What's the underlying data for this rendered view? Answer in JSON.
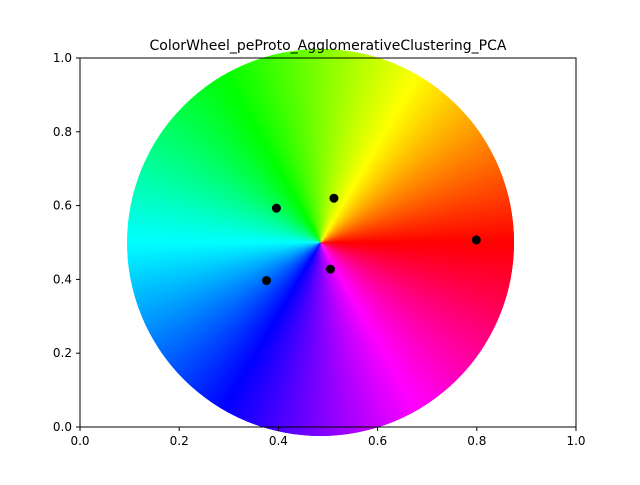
{
  "chart_data": {
    "type": "scatter",
    "title": "ColorWheel_peProto_AgglomerativeClustering_PCA",
    "xlabel": "",
    "ylabel": "",
    "xlim": [
      0.0,
      1.0
    ],
    "ylim": [
      0.0,
      1.0
    ],
    "x_ticks": [
      "0.0",
      "0.2",
      "0.4",
      "0.6",
      "0.8",
      "1.0"
    ],
    "y_ticks": [
      "0.0",
      "0.2",
      "0.4",
      "0.6",
      "0.8",
      "1.0"
    ],
    "grid": false,
    "background": {
      "type": "hue-wheel",
      "center": [
        0.485,
        0.5
      ],
      "radius_x": 0.39,
      "note_colors": [
        "#ff0000",
        "#ffff00",
        "#00ff00",
        "#00ffff",
        "#0000ff",
        "#ff00ff"
      ]
    },
    "points": [
      {
        "x": 0.512,
        "y": 0.62
      },
      {
        "x": 0.396,
        "y": 0.593
      },
      {
        "x": 0.799,
        "y": 0.507
      },
      {
        "x": 0.505,
        "y": 0.428
      },
      {
        "x": 0.376,
        "y": 0.397
      }
    ],
    "marker_color": "#000000"
  }
}
